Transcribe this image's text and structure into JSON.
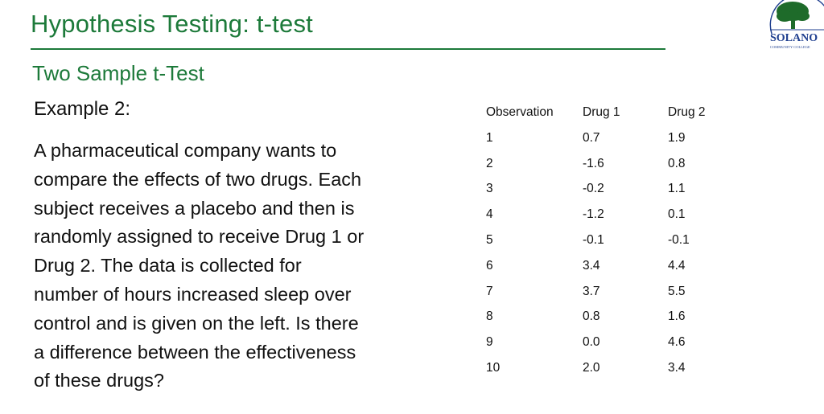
{
  "slide": {
    "title": "Hypothesis Testing: t-test",
    "subtitle": "Two Sample t-Test",
    "example_label": "Example 2:",
    "paragraph_lines": [
      " A pharmaceutical company wants to",
      "compare the effects of two drugs. Each",
      "subject receives a placebo and then is",
      "randomly assigned to receive Drug 1 or",
      "Drug 2. The data is collected for",
      "number of hours increased sleep over",
      "control and is given on the left. Is there",
      "a difference between the effectiveness",
      "of these drugs?"
    ],
    "accent_color": "#1d7a3a"
  },
  "logo": {
    "text": "SOLANO",
    "subtext": "COMMUNITY COLLEGE",
    "icon": "oak-tree-icon"
  },
  "table": {
    "headers": [
      "Observation",
      "Drug 1",
      "Drug 2"
    ],
    "rows": [
      [
        "1",
        "0.7",
        "1.9"
      ],
      [
        "2",
        "-1.6",
        "0.8"
      ],
      [
        "3",
        "-0.2",
        "1.1"
      ],
      [
        "4",
        "-1.2",
        "0.1"
      ],
      [
        "5",
        "-0.1",
        "-0.1"
      ],
      [
        "6",
        "3.4",
        "4.4"
      ],
      [
        "7",
        "3.7",
        "5.5"
      ],
      [
        "8",
        "0.8",
        "1.6"
      ],
      [
        "9",
        "0.0",
        "4.6"
      ],
      [
        "10",
        "2.0",
        "3.4"
      ]
    ]
  }
}
